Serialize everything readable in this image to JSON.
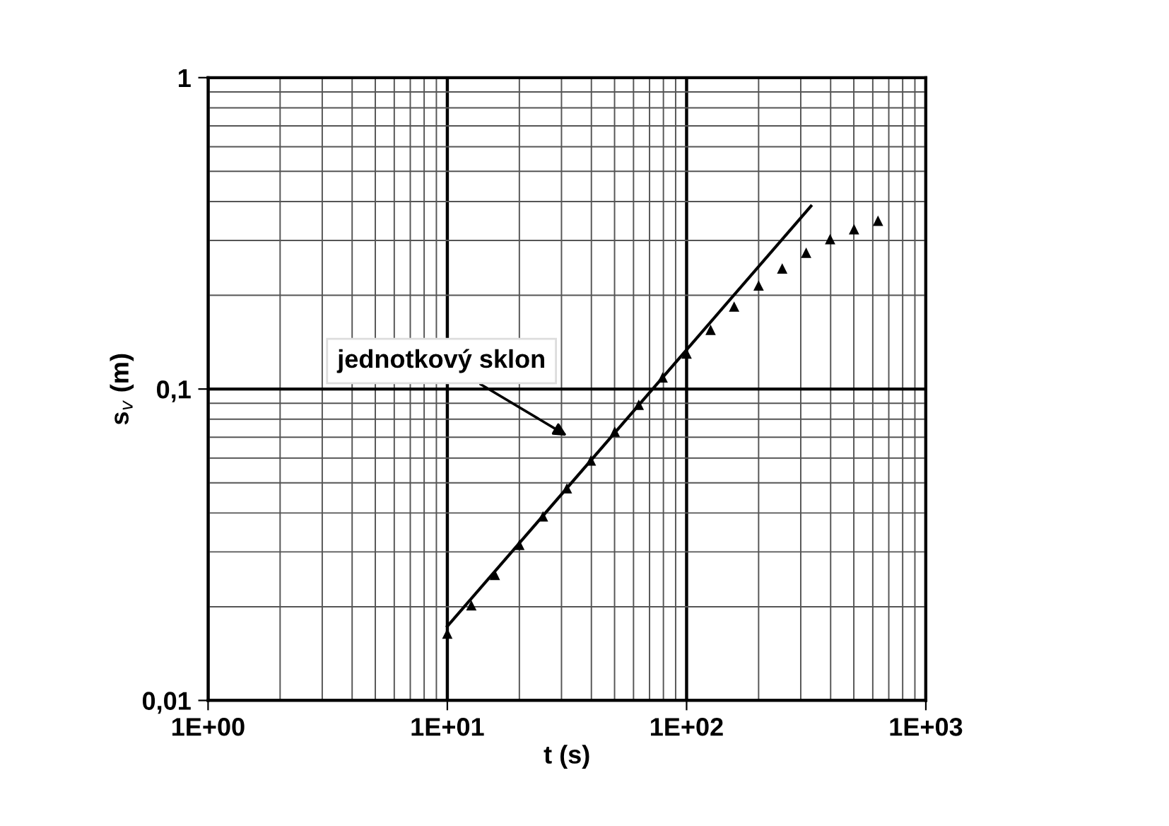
{
  "chart_data": {
    "type": "scatter",
    "xlabel": "t (s)",
    "ylabel": "s$_{v}$ (m)",
    "log": "xy",
    "grid": true,
    "xlim": [
      1,
      1000
    ],
    "xticks": [
      {
        "value": 1,
        "label": "1E+00"
      },
      {
        "value": 10,
        "label": "1E+01"
      },
      {
        "value": 100,
        "label": "1E+02"
      },
      {
        "value": 1000,
        "label": "1E+03"
      }
    ],
    "ylim": [
      0.01,
      1
    ],
    "yticks": [
      {
        "value": 0.01,
        "label": "0,01"
      },
      {
        "value": 0.1,
        "label": "0,1"
      },
      1
    ],
    "series": [
      {
        "color": "#000000",
        "marker": "triangle",
        "x": [
          10,
          12.6,
          15.8,
          20,
          25.1,
          31.6,
          39.8,
          50.1,
          63.1,
          79.4,
          100,
          126,
          158,
          200,
          251,
          316,
          398,
          501,
          631
        ],
        "values": [
          0.0164,
          0.0202,
          0.0253,
          0.0316,
          0.039,
          0.048,
          0.059,
          0.073,
          0.089,
          0.109,
          0.13,
          0.155,
          0.184,
          0.215,
          0.244,
          0.274,
          0.303,
          0.326,
          0.347
        ]
      },
      {
        "type": "line",
        "color": "#000000",
        "marker": "none",
        "line_style": "solid",
        "x": [
          10,
          331
        ],
        "values": [
          0.0173,
          0.387
        ]
      }
    ],
    "annotations": [
      "jednotkový sklon"
    ]
  }
}
